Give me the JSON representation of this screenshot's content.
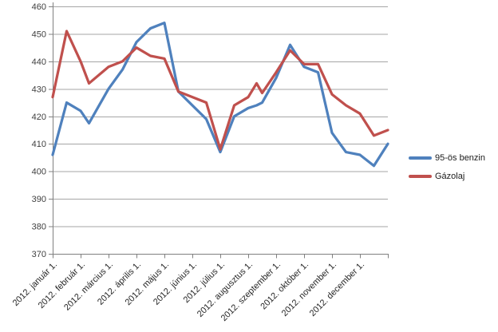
{
  "chart_data": {
    "type": "line",
    "title": "",
    "x_tick_labels": [
      "2012. január 1.",
      "2012. február 1.",
      "2012. március 1.",
      "2012. április 1.",
      "2012. május 1.",
      "2012. június 1.",
      "2012. július 1.",
      "2012. augusztus 1.",
      "2012. szeptember 1.",
      "2012. október 1.",
      "2012. november 1.",
      "2012. december 1."
    ],
    "x_months": [
      0,
      0.5,
      1,
      1.3,
      2,
      2.5,
      3,
      3.5,
      4,
      4.5,
      5,
      5.5,
      6,
      6.5,
      7,
      7.3,
      7.5,
      8,
      8.5,
      9,
      9.5,
      10,
      10.5,
      11,
      11.5,
      12
    ],
    "series": [
      {
        "name": "95-ös benzin",
        "color": "#4F81BD",
        "values": [
          406,
          425,
          422,
          417.5,
          430,
          437,
          447,
          452,
          454,
          429,
          424,
          419,
          407,
          420,
          423,
          424,
          425,
          434,
          446,
          438,
          436,
          414,
          407,
          406,
          402,
          410
        ]
      },
      {
        "name": "Gázolaj",
        "color": "#C0504D",
        "values": [
          427,
          451,
          440,
          432,
          438,
          440,
          445,
          442,
          441,
          429,
          427,
          425,
          408,
          424,
          427,
          432,
          428.5,
          436,
          444,
          439,
          439,
          428,
          424,
          421,
          413,
          415
        ]
      }
    ],
    "ylim": [
      370,
      460
    ],
    "y_tick_step": 10,
    "y_tick_labels": [
      "370",
      "380",
      "390",
      "400",
      "410",
      "420",
      "430",
      "440",
      "450",
      "460"
    ],
    "grid": true,
    "legend_position": "right",
    "axis_color": "#808080",
    "grid_color": "#a6a6a6"
  }
}
